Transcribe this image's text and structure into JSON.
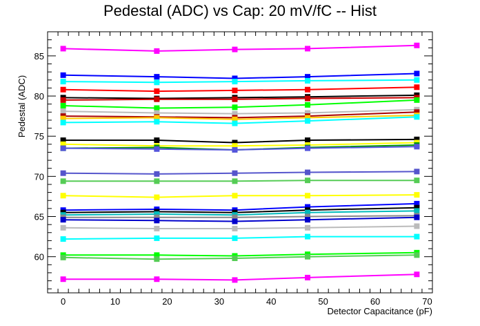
{
  "chart_data": {
    "type": "line",
    "title": "Pedestal (ADC) vs Cap: 20 mV/fC -- Hist",
    "xlabel": "Detector Capacitance (pF)",
    "ylabel": "Pedestal (ADC)",
    "xlim": [
      -3,
      71
    ],
    "ylim": [
      55.5,
      88
    ],
    "x_ticks": [
      0,
      10,
      20,
      30,
      40,
      50,
      60,
      70
    ],
    "y_ticks": [
      60,
      65,
      70,
      75,
      80,
      85
    ],
    "grid": false,
    "legend": "none",
    "x": [
      0,
      18,
      33,
      47,
      68
    ],
    "series": [
      {
        "color": "#ff00ff",
        "values": [
          85.9,
          85.6,
          85.8,
          85.9,
          86.3
        ]
      },
      {
        "color": "#0000ff",
        "values": [
          82.6,
          82.4,
          82.2,
          82.4,
          82.8
        ]
      },
      {
        "color": "#00ffff",
        "values": [
          81.8,
          81.7,
          81.8,
          81.9,
          82.0
        ]
      },
      {
        "color": "#ff0000",
        "values": [
          80.8,
          80.6,
          80.7,
          80.8,
          81.1
        ]
      },
      {
        "color": "#000000",
        "values": [
          79.8,
          79.7,
          79.8,
          79.9,
          80.1
        ]
      },
      {
        "color": "#cc0000",
        "values": [
          79.5,
          79.6,
          79.6,
          79.7,
          79.8
        ]
      },
      {
        "color": "#00ff00",
        "values": [
          78.8,
          78.5,
          78.6,
          78.9,
          79.5
        ]
      },
      {
        "color": "#bbbbbb",
        "values": [
          78.1,
          77.9,
          77.8,
          77.9,
          78.3
        ]
      },
      {
        "color": "#aa0000",
        "values": [
          77.5,
          77.4,
          77.3,
          77.5,
          78.0
        ]
      },
      {
        "color": "#ffcc00",
        "values": [
          77.2,
          77.3,
          77.1,
          77.3,
          77.6
        ]
      },
      {
        "color": "#00ffff",
        "values": [
          76.7,
          76.8,
          76.6,
          76.9,
          77.4
        ]
      },
      {
        "color": "#000000",
        "values": [
          74.5,
          74.5,
          74.2,
          74.5,
          74.6
        ]
      },
      {
        "color": "#ffff00",
        "values": [
          74.0,
          73.8,
          73.8,
          73.9,
          74.2
        ]
      },
      {
        "color": "#009900",
        "values": [
          73.5,
          73.6,
          73.3,
          73.6,
          73.9
        ]
      },
      {
        "color": "#5555dd",
        "values": [
          73.5,
          73.4,
          73.3,
          73.5,
          73.7
        ]
      },
      {
        "color": "#5555cc",
        "values": [
          70.4,
          70.3,
          70.4,
          70.5,
          70.6
        ]
      },
      {
        "color": "#55cc55",
        "values": [
          69.4,
          69.4,
          69.4,
          69.5,
          69.5
        ]
      },
      {
        "color": "#ffff00",
        "values": [
          67.6,
          67.4,
          67.6,
          67.6,
          67.7
        ]
      },
      {
        "color": "#0000ff",
        "values": [
          65.8,
          65.9,
          65.8,
          66.2,
          66.6
        ]
      },
      {
        "color": "#000000",
        "values": [
          65.5,
          65.6,
          65.5,
          65.8,
          66.1
        ]
      },
      {
        "color": "#00bbbb",
        "values": [
          65.2,
          65.3,
          65.2,
          65.5,
          65.7
        ]
      },
      {
        "color": "#888888",
        "values": [
          64.9,
          64.9,
          64.9,
          65.0,
          65.1
        ]
      },
      {
        "color": "#0000cc",
        "values": [
          64.6,
          64.5,
          64.4,
          64.6,
          64.9
        ]
      },
      {
        "color": "#bbbbbb",
        "values": [
          63.6,
          63.5,
          63.5,
          63.6,
          63.8
        ]
      },
      {
        "color": "#00ffff",
        "values": [
          62.2,
          62.3,
          62.3,
          62.5,
          62.5
        ]
      },
      {
        "color": "#00ff00",
        "values": [
          60.2,
          60.2,
          60.1,
          60.3,
          60.5
        ]
      },
      {
        "color": "#55cc55",
        "values": [
          59.9,
          59.7,
          59.8,
          60.0,
          60.2
        ]
      },
      {
        "color": "#ff00ff",
        "values": [
          57.2,
          57.2,
          57.1,
          57.4,
          57.8
        ]
      }
    ]
  }
}
